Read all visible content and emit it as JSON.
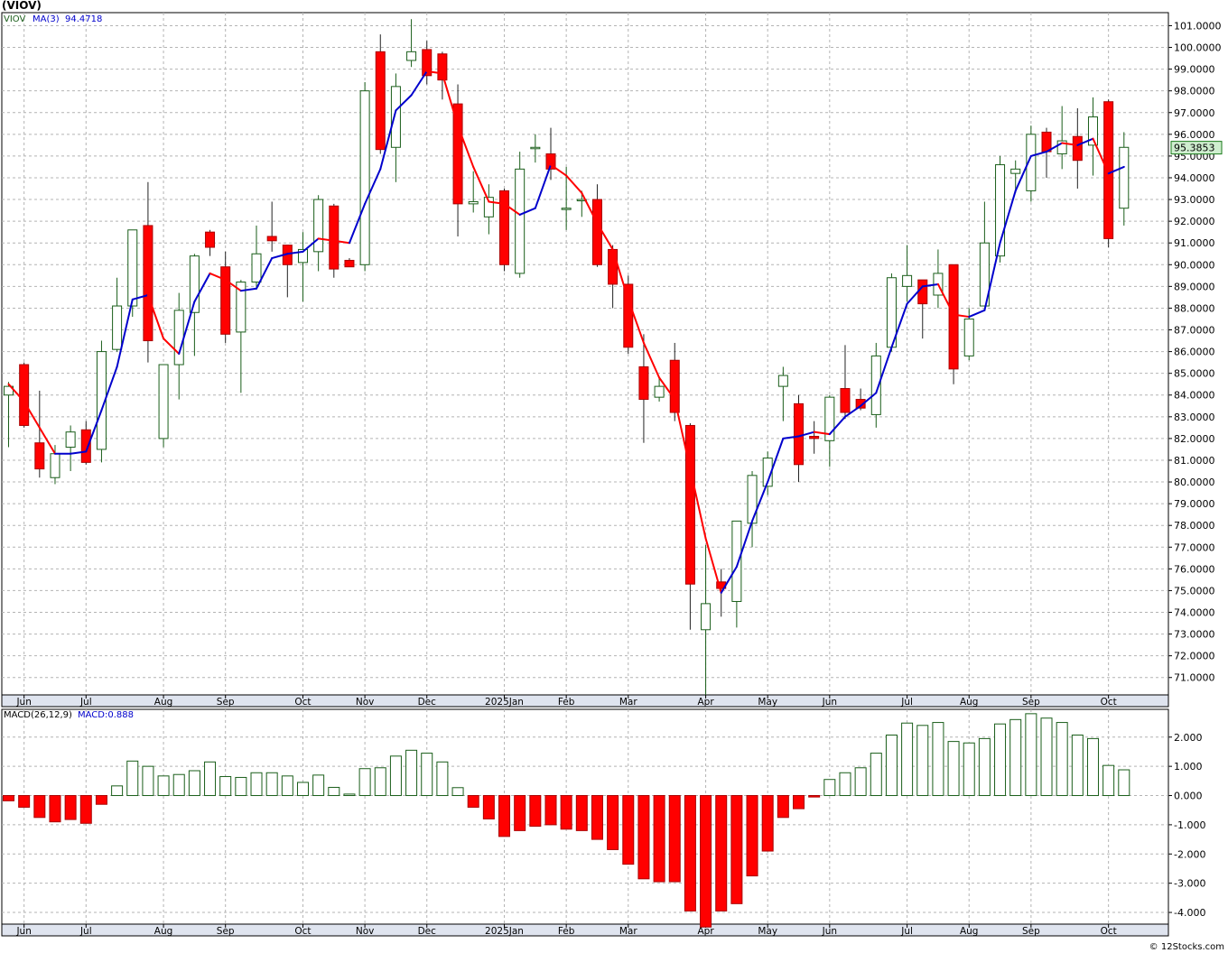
{
  "title": "(VIOV)",
  "footer": "© 12Stocks.com",
  "price_legend": {
    "symbol": "VIOV",
    "ma_label": "MA(3)",
    "ma_value": "94.4718"
  },
  "macd_legend": {
    "label": "MACD(26,12,9)",
    "value_label": "MACD:0.888"
  },
  "last_price_label": "95.3853",
  "colors": {
    "up": "#1a5e1a",
    "down": "#ff0000",
    "ma_up": "#0000cc",
    "ma_down": "#ff0000",
    "grid": "#b4b4b4",
    "last_price_bg": "#cfeecf"
  },
  "chart_data": [
    {
      "type": "candlestick",
      "ylim": [
        70.2,
        101.6
      ],
      "yticks": [
        "71.0000",
        "72.0000",
        "73.0000",
        "74.0000",
        "75.0000",
        "76.0000",
        "77.0000",
        "78.0000",
        "79.0000",
        "80.0000",
        "81.0000",
        "82.0000",
        "83.0000",
        "84.0000",
        "85.0000",
        "86.0000",
        "87.0000",
        "88.0000",
        "89.0000",
        "90.0000",
        "91.0000",
        "92.0000",
        "93.0000",
        "94.0000",
        "95.0000",
        "96.0000",
        "97.0000",
        "98.0000",
        "99.0000",
        "100.0000",
        "101.0000"
      ],
      "xticks": [
        {
          "i": 1,
          "label": "Jun"
        },
        {
          "i": 5,
          "label": "Jul"
        },
        {
          "i": 10,
          "label": "Aug"
        },
        {
          "i": 14,
          "label": "Sep"
        },
        {
          "i": 19,
          "label": "Oct"
        },
        {
          "i": 23,
          "label": "Nov"
        },
        {
          "i": 27,
          "label": "Dec"
        },
        {
          "i": 32,
          "label": "2025Jan"
        },
        {
          "i": 36,
          "label": "Feb"
        },
        {
          "i": 40,
          "label": "Mar"
        },
        {
          "i": 45,
          "label": "Apr"
        },
        {
          "i": 49,
          "label": "May"
        },
        {
          "i": 53,
          "label": "Jun"
        },
        {
          "i": 58,
          "label": "Jul"
        },
        {
          "i": 62,
          "label": "Aug"
        },
        {
          "i": 66,
          "label": "Sep"
        },
        {
          "i": 71,
          "label": "Oct"
        }
      ],
      "ohlc": [
        [
          84.0,
          84.6,
          81.6,
          84.4
        ],
        [
          85.4,
          85.5,
          82.5,
          82.6
        ],
        [
          81.8,
          84.2,
          80.2,
          80.6
        ],
        [
          80.2,
          81.7,
          79.9,
          81.3
        ],
        [
          81.6,
          82.6,
          80.5,
          82.3
        ],
        [
          82.4,
          82.8,
          80.8,
          80.9
        ],
        [
          81.5,
          86.5,
          80.9,
          86.0
        ],
        [
          86.1,
          89.4,
          86.0,
          88.1
        ],
        [
          88.1,
          91.6,
          87.6,
          91.6
        ],
        [
          91.8,
          93.8,
          85.5,
          86.5
        ],
        [
          82.0,
          85.2,
          81.6,
          85.4
        ],
        [
          85.4,
          88.7,
          83.8,
          87.9
        ],
        [
          87.8,
          90.5,
          85.8,
          90.4
        ],
        [
          91.5,
          91.6,
          90.4,
          90.8
        ],
        [
          89.9,
          90.6,
          86.4,
          86.8
        ],
        [
          86.9,
          89.3,
          84.1,
          89.2
        ],
        [
          89.2,
          91.8,
          88.9,
          90.5
        ],
        [
          91.3,
          92.9,
          90.6,
          91.1
        ],
        [
          90.9,
          90.9,
          88.5,
          90.0
        ],
        [
          90.1,
          91.5,
          88.3,
          90.7
        ],
        [
          90.6,
          93.2,
          89.7,
          93.0
        ],
        [
          92.7,
          92.8,
          89.4,
          89.8
        ],
        [
          90.2,
          90.3,
          89.9,
          89.9
        ],
        [
          90.0,
          98.4,
          89.7,
          98.0
        ],
        [
          99.8,
          100.6,
          95.1,
          95.3
        ],
        [
          95.4,
          98.8,
          93.8,
          98.2
        ],
        [
          99.4,
          101.3,
          99.1,
          99.8
        ],
        [
          99.9,
          100.3,
          98.3,
          98.7
        ],
        [
          99.7,
          99.8,
          97.6,
          98.5
        ],
        [
          97.4,
          98.3,
          91.3,
          92.8
        ],
        [
          92.8,
          94.3,
          92.4,
          92.9
        ],
        [
          92.2,
          93.7,
          91.4,
          93.1
        ],
        [
          93.4,
          93.5,
          89.7,
          90.0
        ],
        [
          89.6,
          95.2,
          89.4,
          94.4
        ],
        [
          95.4,
          96.0,
          94.7,
          95.4
        ],
        [
          95.1,
          96.3,
          93.9,
          94.4
        ],
        [
          92.6,
          94.5,
          91.6,
          92.6
        ],
        [
          93.0,
          93.4,
          92.2,
          93.0
        ],
        [
          93.0,
          93.7,
          89.9,
          90.0
        ],
        [
          90.7,
          90.9,
          88.0,
          89.1
        ],
        [
          89.1,
          89.5,
          85.9,
          86.2
        ],
        [
          85.3,
          86.8,
          81.8,
          83.8
        ],
        [
          83.9,
          84.8,
          83.7,
          84.4
        ],
        [
          85.6,
          86.4,
          82.8,
          83.2
        ],
        [
          82.6,
          82.7,
          73.2,
          75.3
        ],
        [
          73.2,
          77.1,
          70.2,
          74.4
        ],
        [
          75.4,
          76.0,
          73.8,
          75.1
        ],
        [
          74.5,
          78.2,
          73.3,
          78.2
        ],
        [
          78.1,
          80.5,
          77.0,
          80.3
        ],
        [
          79.8,
          81.4,
          79.4,
          81.1
        ],
        [
          84.4,
          85.3,
          82.8,
          84.9
        ],
        [
          83.6,
          84.0,
          80.0,
          80.8
        ],
        [
          82.1,
          82.8,
          81.3,
          82.0
        ],
        [
          81.9,
          84.0,
          80.7,
          83.9
        ],
        [
          84.3,
          86.3,
          82.9,
          83.2
        ],
        [
          83.8,
          84.3,
          83.3,
          83.4
        ],
        [
          83.1,
          86.4,
          82.5,
          85.8
        ],
        [
          86.2,
          89.6,
          86.0,
          89.4
        ],
        [
          89.0,
          90.9,
          88.3,
          89.5
        ],
        [
          89.3,
          89.3,
          86.6,
          88.2
        ],
        [
          88.6,
          90.7,
          88.0,
          89.6
        ],
        [
          90.0,
          90.0,
          84.5,
          85.2
        ],
        [
          85.8,
          88.0,
          85.6,
          87.5
        ],
        [
          88.1,
          92.9,
          88.1,
          91.0
        ],
        [
          90.4,
          95.0,
          90.1,
          94.6
        ],
        [
          94.2,
          94.8,
          93.3,
          94.4
        ],
        [
          93.4,
          96.4,
          92.9,
          96.0
        ],
        [
          96.1,
          96.3,
          94.0,
          95.2
        ],
        [
          95.1,
          97.3,
          94.4,
          95.7
        ],
        [
          95.9,
          97.2,
          93.5,
          94.8
        ],
        [
          95.5,
          97.7,
          94.1,
          96.8
        ],
        [
          97.5,
          97.6,
          90.8,
          91.2
        ],
        [
          92.6,
          96.1,
          91.8,
          95.4
        ]
      ],
      "ma": [
        84.5,
        83.7,
        82.5,
        81.3,
        81.3,
        81.4,
        83.3,
        85.3,
        88.4,
        88.6,
        86.6,
        85.9,
        88.3,
        89.6,
        89.3,
        88.8,
        88.9,
        90.3,
        90.5,
        90.6,
        91.2,
        91.1,
        91.0,
        92.8,
        94.4,
        97.1,
        97.8,
        98.9,
        98.8,
        96.4,
        94.5,
        92.9,
        92.8,
        92.3,
        92.6,
        94.6,
        94.1,
        93.3,
        91.9,
        90.7,
        88.4,
        86.4,
        84.8,
        83.8,
        80.6,
        77.4,
        74.9,
        76.1,
        78.2,
        80.0,
        82.0,
        82.1,
        82.3,
        82.2,
        83.0,
        83.5,
        84.1,
        86.2,
        88.2,
        89.0,
        89.1,
        87.7,
        87.6,
        87.9,
        91.0,
        93.4,
        95.0,
        95.2,
        95.6,
        95.5,
        95.8,
        94.2,
        94.5
      ]
    },
    {
      "type": "bar",
      "name": "MACD(26,12,9)",
      "ylim": [
        -4.4,
        2.95
      ],
      "yticks": [
        "-4.000",
        "-3.000",
        "-2.000",
        "-1.000",
        "0.000",
        "1.000",
        "2.000"
      ],
      "values": [
        -0.18,
        -0.4,
        -0.75,
        -0.9,
        -0.82,
        -0.95,
        -0.3,
        0.33,
        1.18,
        1.0,
        0.67,
        0.72,
        0.85,
        1.15,
        0.65,
        0.62,
        0.78,
        0.78,
        0.67,
        0.45,
        0.7,
        0.28,
        0.05,
        0.92,
        0.95,
        1.35,
        1.55,
        1.45,
        1.15,
        0.27,
        -0.4,
        -0.8,
        -1.4,
        -1.2,
        -1.05,
        -1.0,
        -1.15,
        -1.2,
        -1.5,
        -1.85,
        -2.35,
        -2.85,
        -2.95,
        -2.95,
        -3.95,
        -4.5,
        -3.95,
        -3.7,
        -2.75,
        -1.9,
        -0.75,
        -0.45,
        -0.05,
        0.55,
        0.78,
        0.95,
        1.45,
        2.07,
        2.48,
        2.4,
        2.5,
        1.85,
        1.8,
        1.95,
        2.45,
        2.6,
        2.8,
        2.65,
        2.5,
        2.07,
        1.95,
        1.03,
        0.88
      ]
    }
  ]
}
